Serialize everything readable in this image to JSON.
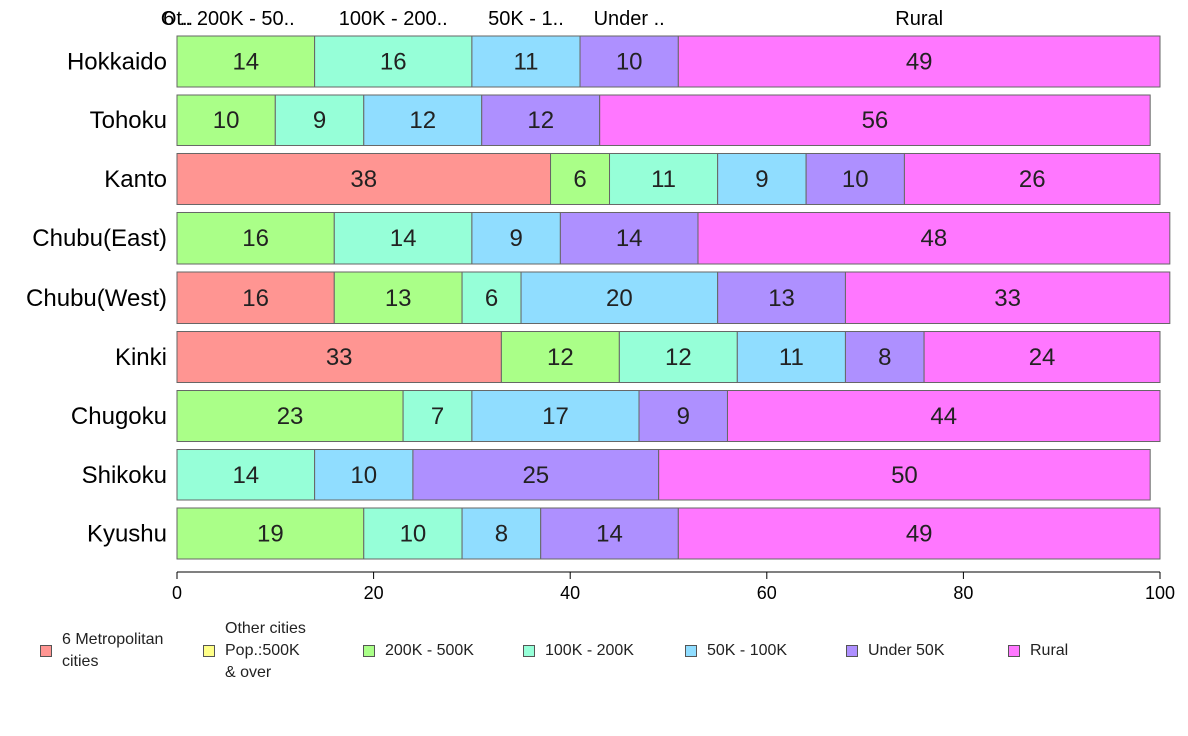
{
  "chart_data": {
    "type": "bar",
    "orientation": "horizontal",
    "stacked": true,
    "categories": [
      "Hokkaido",
      "Tohoku",
      "Kanto",
      "Chubu(East)",
      "Chubu(West)",
      "Kinki",
      "Chugoku",
      "Shikoku",
      "Kyushu"
    ],
    "series": [
      {
        "name": "6 Metropolitan\ncities",
        "color": "#FF9592",
        "values": [
          0,
          0,
          38,
          0,
          16,
          33,
          0,
          0,
          0
        ]
      },
      {
        "name": "Other cities\nPop.:500K\n & over",
        "color": "#FFFF88",
        "values": [
          0,
          0,
          0,
          0,
          0,
          0,
          0,
          0,
          0
        ]
      },
      {
        "name": "200K - 500K",
        "color": "#AAFF88",
        "values": [
          14,
          10,
          6,
          16,
          13,
          12,
          23,
          0,
          19
        ]
      },
      {
        "name": "100K - 200K",
        "color": "#96FFD8",
        "values": [
          16,
          9,
          11,
          14,
          6,
          12,
          7,
          14,
          10
        ]
      },
      {
        "name": "50K - 100K",
        "color": "#90DDFF",
        "values": [
          11,
          12,
          9,
          9,
          20,
          11,
          17,
          10,
          8
        ]
      },
      {
        "name": "Under 50K",
        "color": "#AE90FF",
        "values": [
          10,
          12,
          10,
          14,
          13,
          8,
          9,
          25,
          14
        ]
      },
      {
        "name": "Rural",
        "color": "#FF77FF",
        "values": [
          49,
          56,
          26,
          48,
          33,
          24,
          44,
          50,
          49
        ]
      }
    ],
    "top_labels": [
      "6 ..",
      "Ot..",
      "200K - 50..",
      "100K - 200..",
      "50K - 1..",
      "Under ..",
      "Rural"
    ],
    "xlim": [
      0,
      100
    ],
    "xticks": [
      0,
      20,
      40,
      60,
      80,
      100
    ],
    "legend_position": "bottom"
  }
}
